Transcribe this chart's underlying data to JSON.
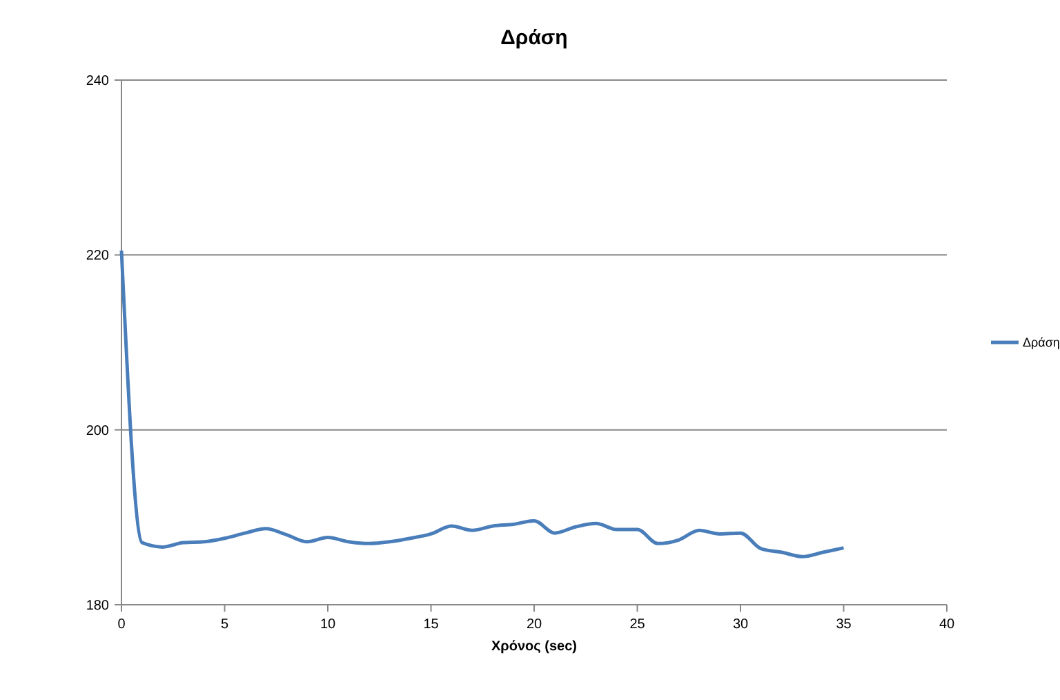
{
  "chart_data": {
    "type": "line",
    "title": "Δράση",
    "xlabel": "Χρόνος (sec)",
    "x": [
      0,
      1,
      2,
      3,
      4,
      5,
      6,
      7,
      8,
      9,
      10,
      11,
      12,
      13,
      14,
      15,
      16,
      17,
      18,
      19,
      20,
      21,
      22,
      23,
      24,
      25,
      26,
      27,
      28,
      29,
      30,
      31,
      32,
      33,
      34,
      35
    ],
    "series": [
      {
        "name": "Δράση",
        "color": "#4a7ebb",
        "values": [
          220.5,
          187.1,
          186.6,
          187.1,
          187.2,
          187.6,
          188.2,
          188.7,
          188.0,
          187.2,
          187.7,
          187.2,
          187.0,
          187.2,
          187.6,
          188.1,
          189.0,
          188.5,
          189.0,
          189.2,
          189.6,
          188.2,
          188.9,
          189.3,
          188.6,
          188.6,
          187.0,
          187.4,
          188.5,
          188.1,
          188.2,
          186.4,
          186.0,
          185.5,
          186.0,
          186.5
        ]
      }
    ],
    "xlim": [
      0,
      40
    ],
    "xticks": [
      0,
      5,
      10,
      15,
      20,
      25,
      30,
      35,
      40
    ],
    "ylim": [
      180,
      240
    ],
    "yticks": [
      180,
      200,
      220,
      240
    ],
    "grid": "y",
    "legend": "right",
    "marker": "none",
    "line_style": "solid"
  }
}
